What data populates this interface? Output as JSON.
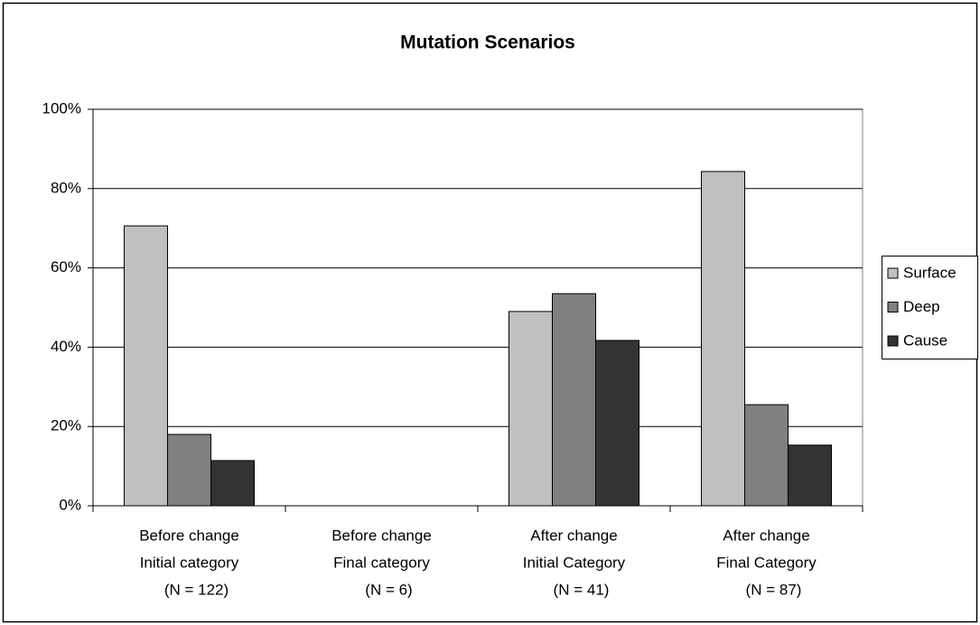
{
  "chart_data": {
    "type": "bar",
    "title": "Mutation Scenarios",
    "categories": [
      [
        "Before change",
        "Initial category",
        "(N = 122)"
      ],
      [
        "Before change",
        "Final category",
        "(N = 6)"
      ],
      [
        "After change",
        "Initial Category",
        "(N = 41)"
      ],
      [
        "After change",
        "Final Category",
        "(N = 87)"
      ]
    ],
    "series": [
      {
        "name": "Surface",
        "color": "#c0c0c0",
        "values": [
          70.6,
          0,
          49.0,
          84.3
        ]
      },
      {
        "name": "Deep",
        "color": "#808080",
        "values": [
          18.0,
          0,
          53.5,
          25.5
        ]
      },
      {
        "name": "Cause",
        "color": "#333333",
        "values": [
          11.4,
          0,
          41.7,
          15.3
        ]
      }
    ],
    "ylim": [
      0,
      100
    ],
    "yticks": [
      {
        "value": 0,
        "label": "0%"
      },
      {
        "value": 20,
        "label": "20%"
      },
      {
        "value": 40,
        "label": "40%"
      },
      {
        "value": 60,
        "label": "60%"
      },
      {
        "value": 80,
        "label": "80%"
      },
      {
        "value": 100,
        "label": "100%"
      }
    ],
    "grid": true,
    "legend": "right"
  }
}
